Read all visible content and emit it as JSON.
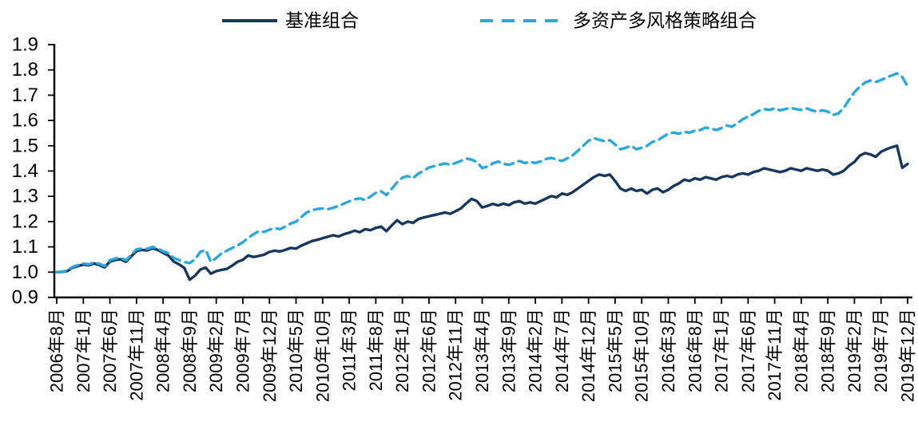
{
  "chart_data": {
    "type": "line",
    "title": "",
    "xlabel": "",
    "ylabel": "",
    "ylim": [
      0.9,
      1.9
    ],
    "grid": false,
    "legend_position": "top-center",
    "axis_color": "#000000",
    "y_tick_labels": [
      "0.9",
      "1.0",
      "1.1",
      "1.2",
      "1.3",
      "1.4",
      "1.5",
      "1.6",
      "1.7",
      "1.8",
      "1.9"
    ],
    "x_tick_step": 5,
    "x_tick_labels": [
      "2006年8月",
      "2007年1月",
      "2007年6月",
      "2007年11月",
      "2008年4月",
      "2008年9月",
      "2009年2月",
      "2009年7月",
      "2009年12月",
      "2010年5月",
      "2010年10月",
      "2011年3月",
      "2011年8月",
      "2012年1月",
      "2012年6月",
      "2012年11月",
      "2013年4月",
      "2013年9月",
      "2014年2月",
      "2014年7月",
      "2014年12月",
      "2015年5月",
      "2015年10月",
      "2016年3月",
      "2016年8月",
      "2017年1月",
      "2017年6月",
      "2017年11月",
      "2018年4月",
      "2018年9月",
      "2019年2月",
      "2019年7月",
      "2019年12月"
    ],
    "series": [
      {
        "name": "基准组合",
        "line_style": "solid",
        "color": "#17375D",
        "values": [
          1.0,
          1.001,
          1.004,
          1.018,
          1.024,
          1.03,
          1.027,
          1.034,
          1.028,
          1.019,
          1.042,
          1.048,
          1.051,
          1.041,
          1.062,
          1.083,
          1.088,
          1.086,
          1.094,
          1.088,
          1.076,
          1.066,
          1.042,
          1.031,
          1.016,
          0.97,
          0.986,
          1.01,
          1.018,
          0.994,
          1.004,
          1.009,
          1.013,
          1.026,
          1.041,
          1.049,
          1.066,
          1.06,
          1.064,
          1.069,
          1.08,
          1.085,
          1.082,
          1.088,
          1.096,
          1.093,
          1.105,
          1.114,
          1.123,
          1.128,
          1.134,
          1.14,
          1.146,
          1.141,
          1.15,
          1.156,
          1.164,
          1.158,
          1.17,
          1.166,
          1.175,
          1.18,
          1.162,
          1.185,
          1.205,
          1.19,
          1.2,
          1.195,
          1.21,
          1.216,
          1.221,
          1.226,
          1.231,
          1.236,
          1.231,
          1.241,
          1.252,
          1.272,
          1.29,
          1.281,
          1.256,
          1.262,
          1.27,
          1.264,
          1.271,
          1.265,
          1.276,
          1.281,
          1.271,
          1.276,
          1.271,
          1.281,
          1.291,
          1.301,
          1.296,
          1.311,
          1.306,
          1.316,
          1.331,
          1.346,
          1.361,
          1.376,
          1.386,
          1.381,
          1.386,
          1.361,
          1.331,
          1.321,
          1.331,
          1.321,
          1.326,
          1.311,
          1.326,
          1.331,
          1.316,
          1.326,
          1.341,
          1.351,
          1.366,
          1.361,
          1.371,
          1.366,
          1.376,
          1.371,
          1.366,
          1.376,
          1.381,
          1.376,
          1.386,
          1.391,
          1.386,
          1.396,
          1.401,
          1.411,
          1.406,
          1.401,
          1.396,
          1.401,
          1.411,
          1.406,
          1.401,
          1.411,
          1.406,
          1.401,
          1.406,
          1.401,
          1.386,
          1.391,
          1.401,
          1.421,
          1.436,
          1.461,
          1.471,
          1.466,
          1.456,
          1.476,
          1.486,
          1.494,
          1.5,
          1.413,
          1.428
        ]
      },
      {
        "name": "多资产多风格策略组合",
        "line_style": "dashed",
        "color": "#29A8E0",
        "values": [
          1.0,
          1.002,
          1.006,
          1.021,
          1.028,
          1.034,
          1.031,
          1.038,
          1.033,
          1.024,
          1.047,
          1.054,
          1.057,
          1.047,
          1.068,
          1.09,
          1.094,
          1.092,
          1.1,
          1.094,
          1.082,
          1.075,
          1.056,
          1.048,
          1.04,
          1.036,
          1.05,
          1.08,
          1.088,
          1.04,
          1.056,
          1.074,
          1.085,
          1.096,
          1.106,
          1.118,
          1.136,
          1.15,
          1.162,
          1.159,
          1.168,
          1.174,
          1.17,
          1.18,
          1.192,
          1.2,
          1.218,
          1.236,
          1.245,
          1.25,
          1.252,
          1.249,
          1.255,
          1.262,
          1.271,
          1.28,
          1.288,
          1.292,
          1.285,
          1.299,
          1.314,
          1.32,
          1.305,
          1.33,
          1.355,
          1.374,
          1.38,
          1.372,
          1.39,
          1.401,
          1.414,
          1.42,
          1.425,
          1.43,
          1.425,
          1.432,
          1.44,
          1.45,
          1.445,
          1.436,
          1.412,
          1.418,
          1.43,
          1.438,
          1.428,
          1.425,
          1.432,
          1.44,
          1.432,
          1.436,
          1.432,
          1.438,
          1.448,
          1.452,
          1.445,
          1.44,
          1.45,
          1.462,
          1.48,
          1.5,
          1.52,
          1.53,
          1.524,
          1.518,
          1.522,
          1.505,
          1.486,
          1.492,
          1.5,
          1.486,
          1.492,
          1.5,
          1.515,
          1.521,
          1.535,
          1.548,
          1.552,
          1.548,
          1.555,
          1.552,
          1.56,
          1.562,
          1.572,
          1.568,
          1.562,
          1.57,
          1.58,
          1.575,
          1.59,
          1.605,
          1.615,
          1.625,
          1.638,
          1.645,
          1.642,
          1.648,
          1.64,
          1.645,
          1.65,
          1.645,
          1.642,
          1.648,
          1.64,
          1.635,
          1.64,
          1.635,
          1.622,
          1.628,
          1.65,
          1.682,
          1.712,
          1.733,
          1.75,
          1.758,
          1.752,
          1.76,
          1.77,
          1.778,
          1.786,
          1.772,
          1.735
        ]
      }
    ]
  }
}
